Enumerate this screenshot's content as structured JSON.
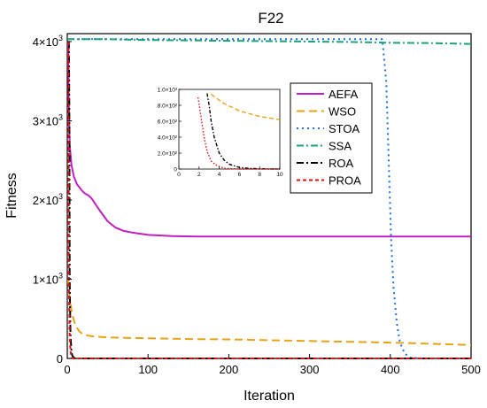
{
  "chart_data": {
    "type": "line",
    "title": "F22",
    "xlabel": "Iteration",
    "ylabel": "Fitness",
    "xlim": [
      0,
      500
    ],
    "ylim": [
      0,
      4100
    ],
    "x_ticks": [
      0,
      100,
      200,
      300,
      400,
      500
    ],
    "x_tick_labels": [
      "0",
      "100",
      "200",
      "300",
      "400",
      "500"
    ],
    "y_ticks": [
      0,
      1000,
      2000,
      3000,
      4000
    ],
    "y_tick_labels": [
      {
        "base": "0",
        "exp": ""
      },
      {
        "base": "1×10",
        "exp": "3"
      },
      {
        "base": "2×10",
        "exp": "3"
      },
      {
        "base": "3×10",
        "exp": "3"
      },
      {
        "base": "4×10",
        "exp": "3"
      }
    ],
    "grid": false,
    "legend_position": "upper-right inside",
    "series": [
      {
        "name": "AEFA",
        "color": "#c020c0",
        "dash": "solid",
        "points": [
          [
            1,
            4000
          ],
          [
            2,
            3200
          ],
          [
            3,
            2700
          ],
          [
            5,
            2450
          ],
          [
            8,
            2300
          ],
          [
            12,
            2200
          ],
          [
            18,
            2120
          ],
          [
            22,
            2080
          ],
          [
            26,
            2060
          ],
          [
            30,
            2020
          ],
          [
            40,
            1870
          ],
          [
            50,
            1730
          ],
          [
            60,
            1650
          ],
          [
            70,
            1610
          ],
          [
            80,
            1590
          ],
          [
            100,
            1560
          ],
          [
            130,
            1545
          ],
          [
            160,
            1540
          ],
          [
            200,
            1540
          ],
          [
            300,
            1540
          ],
          [
            400,
            1540
          ],
          [
            500,
            1540
          ]
        ]
      },
      {
        "name": "WSO",
        "color": "#e8a317",
        "dash": "long",
        "points": [
          [
            1,
            1000
          ],
          [
            3,
            750
          ],
          [
            6,
            560
          ],
          [
            10,
            420
          ],
          [
            15,
            340
          ],
          [
            20,
            300
          ],
          [
            30,
            280
          ],
          [
            50,
            265
          ],
          [
            100,
            255
          ],
          [
            150,
            245
          ],
          [
            200,
            240
          ],
          [
            250,
            230
          ],
          [
            300,
            220
          ],
          [
            350,
            210
          ],
          [
            400,
            200
          ],
          [
            450,
            185
          ],
          [
            500,
            170
          ]
        ]
      },
      {
        "name": "STOA",
        "color": "#1e6fd9",
        "dash": "dot",
        "points": [
          [
            0,
            4030
          ],
          [
            100,
            4030
          ],
          [
            200,
            4030
          ],
          [
            300,
            4030
          ],
          [
            390,
            4030
          ],
          [
            395,
            3500
          ],
          [
            398,
            2500
          ],
          [
            401,
            1500
          ],
          [
            404,
            900
          ],
          [
            408,
            450
          ],
          [
            412,
            200
          ],
          [
            418,
            60
          ],
          [
            425,
            10
          ],
          [
            440,
            0
          ],
          [
            500,
            0
          ]
        ]
      },
      {
        "name": "SSA",
        "color": "#1aa37a",
        "dash": "dashdot",
        "points": [
          [
            0,
            4030
          ],
          [
            50,
            4030
          ],
          [
            100,
            4020
          ],
          [
            150,
            4015
          ],
          [
            200,
            4010
          ],
          [
            250,
            4005
          ],
          [
            300,
            4000
          ],
          [
            350,
            3995
          ],
          [
            400,
            3985
          ],
          [
            450,
            3980
          ],
          [
            500,
            3970
          ]
        ]
      },
      {
        "name": "ROA",
        "color": "#000000",
        "dash": "dashdot",
        "points": [
          [
            2,
            4000
          ],
          [
            2.5,
            3200
          ],
          [
            3,
            1000
          ],
          [
            3.5,
            600
          ],
          [
            4,
            300
          ],
          [
            5,
            100
          ],
          [
            6,
            40
          ],
          [
            8,
            10
          ],
          [
            10,
            0
          ],
          [
            500,
            0
          ]
        ]
      },
      {
        "name": "PROA",
        "color": "#e01010",
        "dash": "short",
        "points": [
          [
            1.5,
            4000
          ],
          [
            2,
            900
          ],
          [
            2.5,
            600
          ],
          [
            3,
            300
          ],
          [
            4,
            100
          ],
          [
            5,
            20
          ],
          [
            6,
            5
          ],
          [
            8,
            0
          ],
          [
            500,
            0
          ]
        ]
      }
    ],
    "inset": {
      "xlim": [
        0,
        10
      ],
      "ylim": [
        0,
        1000
      ],
      "x_ticks": [
        0,
        2,
        4,
        6,
        8,
        10
      ],
      "x_tick_labels": [
        "0",
        "2",
        "4",
        "6",
        "8",
        "10"
      ],
      "y_ticks": [
        0,
        200,
        400,
        600,
        800,
        1000
      ],
      "y_tick_labels": [
        "0",
        "2.0×10²",
        "4.0×10²",
        "6.0×10²",
        "8.0×10²",
        "1.0×10³"
      ],
      "series": [
        {
          "name": "WSO",
          "color": "#e8a317",
          "dash": "long",
          "points": [
            [
              3.2,
              940
            ],
            [
              3.6,
              900
            ],
            [
              4.5,
              820
            ],
            [
              6,
              730
            ],
            [
              8,
              660
            ],
            [
              10,
              620
            ]
          ]
        },
        {
          "name": "ROA",
          "color": "#000000",
          "dash": "dashdot",
          "points": [
            [
              2.8,
              950
            ],
            [
              3,
              800
            ],
            [
              3.2,
              600
            ],
            [
              3.5,
              400
            ],
            [
              4,
              200
            ],
            [
              4.5,
              110
            ],
            [
              5,
              60
            ],
            [
              6,
              20
            ],
            [
              7,
              8
            ],
            [
              8,
              3
            ],
            [
              10,
              0
            ]
          ]
        },
        {
          "name": "PROA",
          "color": "#e01010",
          "dash": "dot",
          "points": [
            [
              1.9,
              900
            ],
            [
              2.2,
              650
            ],
            [
              2.5,
              400
            ],
            [
              2.8,
              220
            ],
            [
              3.2,
              100
            ],
            [
              3.8,
              40
            ],
            [
              4.5,
              10
            ],
            [
              6,
              0
            ],
            [
              10,
              0
            ]
          ]
        }
      ]
    }
  }
}
